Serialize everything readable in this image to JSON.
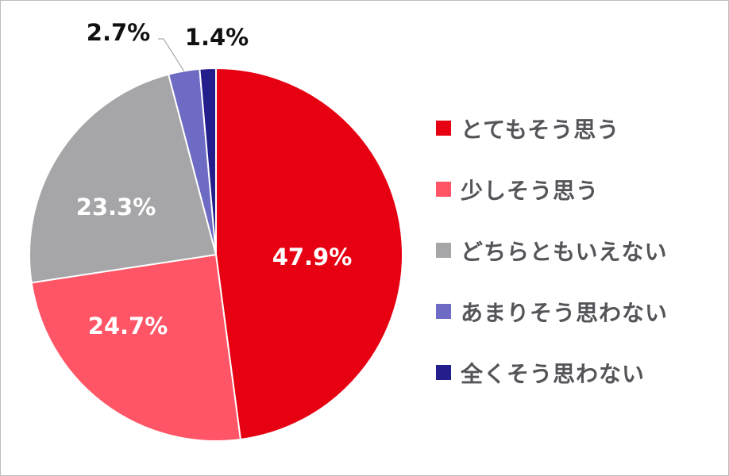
{
  "chart_data": {
    "type": "pie",
    "start_angle": "top",
    "direction": "clockwise",
    "legend_position": "right",
    "slices": [
      {
        "name": "とてもそう思う",
        "value": 47.9,
        "label": "47.9%",
        "color": "#E60012",
        "label_color": "#ffffff"
      },
      {
        "name": "少しそう思う",
        "value": 24.7,
        "label": "24.7%",
        "color": "#FF5566",
        "label_color": "#ffffff"
      },
      {
        "name": "どちらともいえない",
        "value": 23.3,
        "label": "23.3%",
        "color": "#A6A5A8",
        "label_color": "#ffffff"
      },
      {
        "name": "あまりそう思わない",
        "value": 2.7,
        "label": "2.7%",
        "color": "#6E6BC4",
        "label_color": "#111111"
      },
      {
        "name": "全くそう思わない",
        "value": 1.4,
        "label": "1.4%",
        "color": "#231E8C",
        "label_color": "#111111"
      }
    ]
  }
}
